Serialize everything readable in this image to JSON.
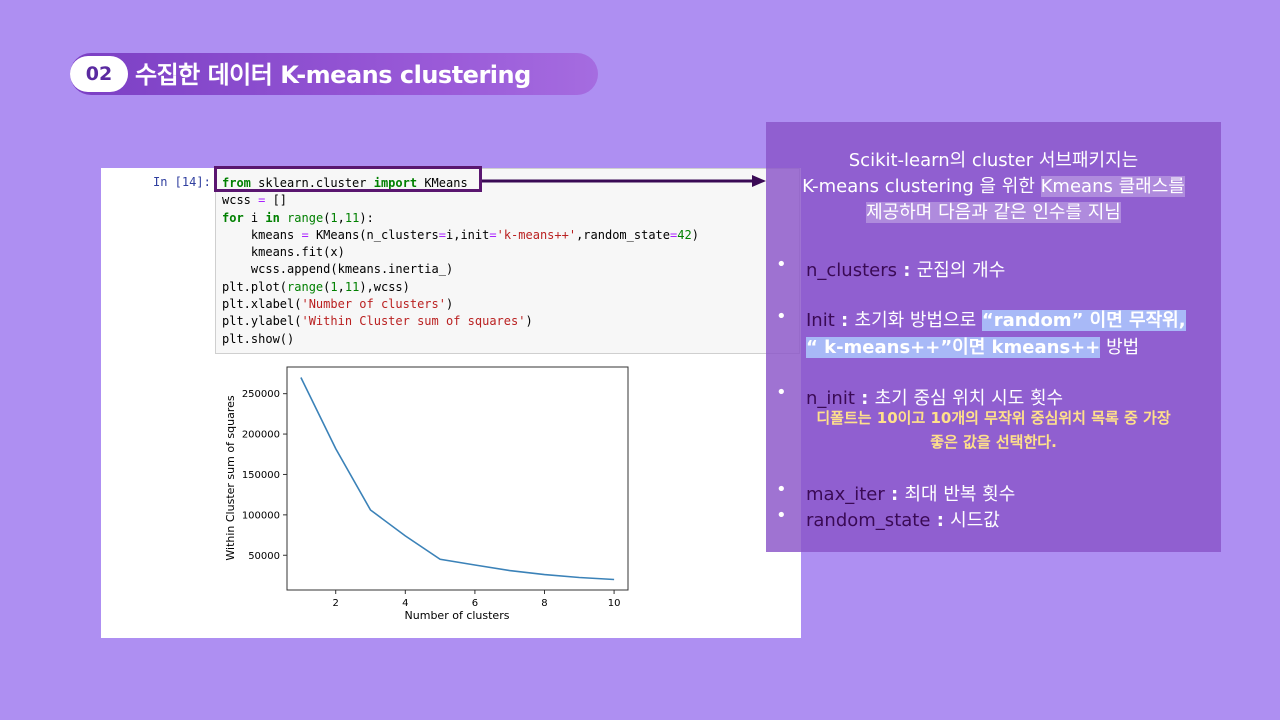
{
  "header": {
    "number": "02",
    "title": "수집한 데이터 K-means clustering"
  },
  "notebook": {
    "prompt": "In [14]:",
    "code": {
      "line1": {
        "k1": "from",
        "t1": " sklearn.cluster ",
        "k2": "import",
        "t2": " KMeans"
      },
      "line2": {
        "t1": "wcss ",
        "op": "=",
        "t2": " []"
      },
      "line3": {
        "k1": "for",
        "t1": " i ",
        "k2": "in",
        "t2": " ",
        "b1": "range",
        "t3": "(",
        "n1": "1",
        "t4": ",",
        "n2": "11",
        "t5": "):"
      },
      "line4": {
        "t1": "    kmeans ",
        "op1": "=",
        "t2": " KMeans(n_clusters",
        "op2": "=",
        "t3": "i,init",
        "op3": "=",
        "s1": "'k-means++'",
        "t4": ",random_state",
        "op4": "=",
        "n1": "42",
        "t5": ")"
      },
      "line5": {
        "t1": "    kmeans.fit(x)"
      },
      "line6": {
        "t1": "    wcss.append(kmeans.inertia_)"
      },
      "line7": {
        "t1": "plt.plot(",
        "b1": "range",
        "t2": "(",
        "n1": "1",
        "t3": ",",
        "n2": "11",
        "t4": "),wcss)"
      },
      "line8": {
        "t1": "plt.xlabel(",
        "s1": "'Number of clusters'",
        "t2": ")"
      },
      "line9": {
        "t1": "plt.ylabel(",
        "s1": "'Within Cluster sum of squares'",
        "t2": ")"
      },
      "line10": {
        "t1": "plt.show()"
      }
    }
  },
  "chart_data": {
    "type": "line",
    "xlabel": "Number of clusters",
    "ylabel": "Within Cluster sum of squares",
    "x": [
      1,
      2,
      3,
      4,
      5,
      6,
      7,
      8,
      9,
      10
    ],
    "series": [
      {
        "values": [
          270000,
          182000,
          106000,
          74000,
          45000,
          38000,
          31000,
          26000,
          22500,
          20000
        ]
      }
    ],
    "xlim": [
      0.6,
      10.4
    ],
    "ylim": [
      7000,
      283000
    ],
    "xticks": [
      2,
      4,
      6,
      8,
      10
    ],
    "yticks": [
      50000,
      100000,
      150000,
      200000,
      250000
    ],
    "xtick_labels": [
      "2",
      "4",
      "6",
      "8",
      "10"
    ],
    "ytick_labels": [
      "50000",
      "100000",
      "150000",
      "200000",
      "250000"
    ],
    "line_color": "#3b82b8",
    "grid": false
  },
  "panel": {
    "intro_line1": "Scikit-learn의 cluster 서브패키지는",
    "intro_line2a": "K-means clustering 을 위한 ",
    "intro_line2b": "Kmeans 클래스를",
    "intro_line3": "제공하며 다음과 같은 인수를 지님",
    "bullets": [
      {
        "symbol": "•",
        "code": "n_clusters",
        "sep": " : ",
        "desc": "군집의 개수"
      },
      {
        "symbol": "•",
        "code": "Init",
        "sep": " : ",
        "desc": "초기화 방법으로 ",
        "hl1": "“random” 이면 무작위,",
        "hl2": "“ k-means++”이면 kmeans++",
        "desc2": " 방법"
      },
      {
        "symbol": "•",
        "code": "n_init",
        "sep": " : ",
        "desc": "초기 중심 위치 시도 횟수"
      },
      {
        "symbol": "•",
        "code": "max_iter",
        "sep": " : ",
        "desc": "최대 반복 횟수"
      },
      {
        "symbol": "•",
        "code": "random_state",
        "sep": " : ",
        "desc": "시드값"
      }
    ],
    "note_line1": "디폴트는 10이고 10개의 무작위 중심위치 목록 중 가장",
    "note_line2": "좋은 값을 선택한다."
  },
  "colors": {
    "background": "#ae8ff2",
    "panel": "#8a54c8",
    "highlight_box": "#5a1670",
    "note": "#ffe08a",
    "highlight_blue": "#a8b9f7"
  }
}
